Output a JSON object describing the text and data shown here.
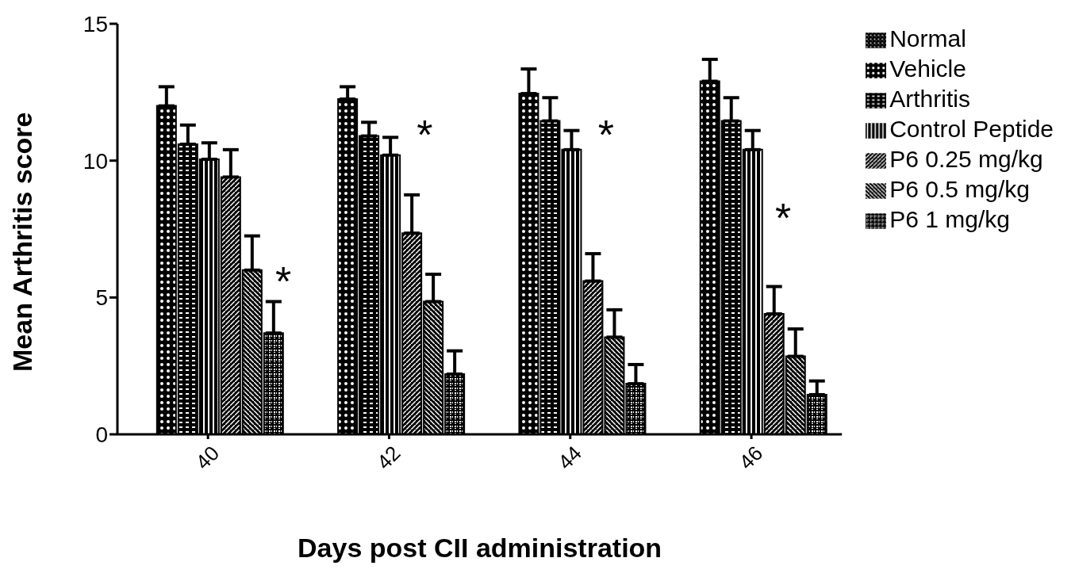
{
  "chart_data": {
    "type": "bar",
    "xlabel": "Days post CII administration",
    "ylabel": "Mean Arthritis score",
    "categories": [
      "40",
      "42",
      "44",
      "46"
    ],
    "ylim": [
      0,
      15
    ],
    "yticks": [
      0,
      5,
      10,
      15
    ],
    "grid": false,
    "legend": "top right",
    "series": [
      {
        "name": "Normal",
        "color": "#000000",
        "values": [
          0,
          0,
          0,
          0
        ]
      },
      {
        "name": "Vehicle",
        "color": "#000000",
        "values": [
          12.0,
          12.25,
          12.45,
          12.9
        ],
        "errors": [
          [
            12.0,
            12.7
          ],
          [
            12.25,
            12.7
          ],
          [
            12.45,
            13.35
          ],
          [
            12.9,
            13.7
          ]
        ]
      },
      {
        "name": "Arthritis",
        "color": "#000000",
        "values": [
          10.6,
          10.9,
          11.45,
          11.45
        ],
        "errors": [
          [
            10.6,
            11.3
          ],
          [
            10.9,
            11.4
          ],
          [
            11.45,
            12.3
          ],
          [
            11.45,
            12.3
          ]
        ]
      },
      {
        "name": "Control Peptide",
        "color": "#000000",
        "values": [
          10.05,
          10.2,
          10.4,
          10.4
        ],
        "errors": [
          [
            10.05,
            10.65
          ],
          [
            10.2,
            10.85
          ],
          [
            10.4,
            11.1
          ],
          [
            10.4,
            11.1
          ]
        ]
      },
      {
        "name": "P6 0.25 mg/kg",
        "color": "#000000",
        "values": [
          9.4,
          7.35,
          5.6,
          4.4
        ],
        "errors": [
          [
            9.4,
            10.4
          ],
          [
            7.35,
            8.75
          ],
          [
            5.6,
            6.6
          ],
          [
            4.4,
            5.4
          ]
        ]
      },
      {
        "name": "P6 0.5 mg/kg",
        "color": "#000000",
        "values": [
          6.0,
          4.85,
          3.55,
          2.85
        ],
        "errors": [
          [
            6.0,
            7.25
          ],
          [
            4.85,
            5.85
          ],
          [
            3.55,
            4.55
          ],
          [
            2.85,
            3.85
          ]
        ]
      },
      {
        "name": "P6 1 mg/kg",
        "color": "#000000",
        "values": [
          3.7,
          2.2,
          1.85,
          1.45
        ],
        "errors": [
          [
            3.7,
            4.85
          ],
          [
            2.2,
            3.05
          ],
          [
            1.85,
            2.55
          ],
          [
            1.45,
            1.95
          ]
        ]
      }
    ],
    "annotations": [
      "*",
      "*",
      "*",
      "*"
    ]
  }
}
